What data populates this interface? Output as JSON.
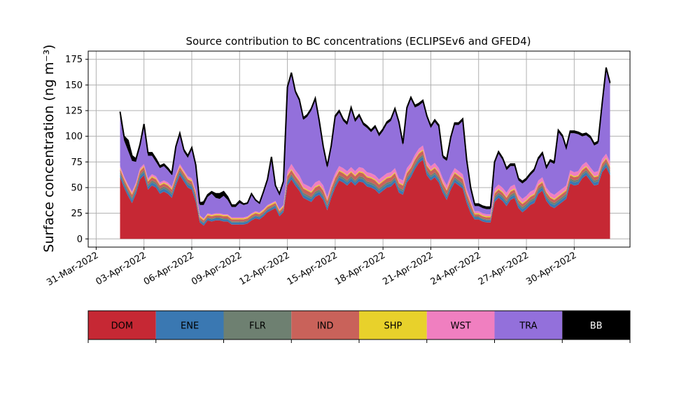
{
  "chart_data": {
    "type": "area",
    "title": "Source contribution to BC concentrations (ECLIPSEv6 and GFED4)",
    "ylabel": "Surface concentration (ng m⁻³)",
    "xlabel": "",
    "ylim": [
      -8,
      183
    ],
    "xlim": [
      "2022-03-30T12:00",
      "2022-05-03T12:00"
    ],
    "grid": true,
    "x_ticks": [
      "31-Mar-2022",
      "03-Apr-2022",
      "06-Apr-2022",
      "09-Apr-2022",
      "12-Apr-2022",
      "15-Apr-2022",
      "18-Apr-2022",
      "21-Apr-2022",
      "24-Apr-2022",
      "27-Apr-2022",
      "30-Apr-2022"
    ],
    "x_tick_dates": [
      "2022-03-31",
      "2022-04-03",
      "2022-04-06",
      "2022-04-09",
      "2022-04-12",
      "2022-04-15",
      "2022-04-18",
      "2022-04-21",
      "2022-04-24",
      "2022-04-27",
      "2022-04-30"
    ],
    "y_ticks": [
      0,
      25,
      50,
      75,
      100,
      125,
      150,
      175
    ],
    "stacked": true,
    "x": [
      "2022-04-01T12:00",
      "2022-04-01T18:00",
      "2022-04-02T00:00",
      "2022-04-02T06:00",
      "2022-04-02T12:00",
      "2022-04-02T18:00",
      "2022-04-03T00:00",
      "2022-04-03T06:00",
      "2022-04-03T12:00",
      "2022-04-03T18:00",
      "2022-04-04T00:00",
      "2022-04-04T06:00",
      "2022-04-04T12:00",
      "2022-04-04T18:00",
      "2022-04-05T00:00",
      "2022-04-05T06:00",
      "2022-04-05T12:00",
      "2022-04-05T18:00",
      "2022-04-06T00:00",
      "2022-04-06T06:00",
      "2022-04-06T12:00",
      "2022-04-06T18:00",
      "2022-04-07T00:00",
      "2022-04-07T06:00",
      "2022-04-07T12:00",
      "2022-04-07T18:00",
      "2022-04-08T00:00",
      "2022-04-08T06:00",
      "2022-04-08T12:00",
      "2022-04-08T18:00",
      "2022-04-09T00:00",
      "2022-04-09T06:00",
      "2022-04-09T12:00",
      "2022-04-09T18:00",
      "2022-04-10T00:00",
      "2022-04-10T06:00",
      "2022-04-10T12:00",
      "2022-04-10T18:00",
      "2022-04-11T00:00",
      "2022-04-11T06:00",
      "2022-04-11T12:00",
      "2022-04-11T18:00",
      "2022-04-12T00:00",
      "2022-04-12T06:00",
      "2022-04-12T12:00",
      "2022-04-12T18:00",
      "2022-04-13T00:00",
      "2022-04-13T06:00",
      "2022-04-13T12:00",
      "2022-04-13T18:00",
      "2022-04-14T00:00",
      "2022-04-14T06:00",
      "2022-04-14T12:00",
      "2022-04-14T18:00",
      "2022-04-15T00:00",
      "2022-04-15T06:00",
      "2022-04-15T12:00",
      "2022-04-15T18:00",
      "2022-04-16T00:00",
      "2022-04-16T06:00",
      "2022-04-16T12:00",
      "2022-04-16T18:00",
      "2022-04-17T00:00",
      "2022-04-17T06:00",
      "2022-04-17T12:00",
      "2022-04-17T18:00",
      "2022-04-18T00:00",
      "2022-04-18T06:00",
      "2022-04-18T12:00",
      "2022-04-18T18:00",
      "2022-04-19T00:00",
      "2022-04-19T06:00",
      "2022-04-19T12:00",
      "2022-04-19T18:00",
      "2022-04-20T00:00",
      "2022-04-20T06:00",
      "2022-04-20T12:00",
      "2022-04-20T18:00",
      "2022-04-21T00:00",
      "2022-04-21T06:00",
      "2022-04-21T12:00",
      "2022-04-21T18:00",
      "2022-04-22T00:00",
      "2022-04-22T06:00",
      "2022-04-22T12:00",
      "2022-04-22T18:00",
      "2022-04-23T00:00",
      "2022-04-23T06:00",
      "2022-04-23T12:00",
      "2022-04-23T18:00",
      "2022-04-24T00:00",
      "2022-04-24T06:00",
      "2022-04-24T12:00",
      "2022-04-24T18:00",
      "2022-04-25T00:00",
      "2022-04-25T06:00",
      "2022-04-25T12:00",
      "2022-04-25T18:00",
      "2022-04-26T00:00",
      "2022-04-26T06:00",
      "2022-04-26T12:00",
      "2022-04-26T18:00",
      "2022-04-27T00:00",
      "2022-04-27T06:00",
      "2022-04-27T12:00",
      "2022-04-27T18:00",
      "2022-04-28T00:00",
      "2022-04-28T06:00",
      "2022-04-28T12:00",
      "2022-04-28T18:00",
      "2022-04-29T00:00",
      "2022-04-29T06:00",
      "2022-04-29T12:00",
      "2022-04-29T18:00",
      "2022-04-30T00:00",
      "2022-04-30T06:00",
      "2022-04-30T12:00",
      "2022-04-30T18:00",
      "2022-05-01T00:00",
      "2022-05-01T06:00",
      "2022-05-01T12:00",
      "2022-05-01T18:00",
      "2022-05-02T00:00",
      "2022-05-02T06:00"
    ],
    "series": [
      {
        "name": "DOM",
        "color": "#c62834",
        "values": [
          60,
          50,
          42,
          35,
          44,
          58,
          62,
          48,
          52,
          50,
          44,
          46,
          44,
          40,
          52,
          62,
          56,
          50,
          48,
          36,
          16,
          13,
          18,
          17,
          18,
          18,
          17,
          17,
          14,
          14,
          14,
          14,
          15,
          18,
          20,
          19,
          22,
          26,
          28,
          30,
          22,
          26,
          52,
          58,
          52,
          47,
          40,
          38,
          36,
          41,
          43,
          38,
          28,
          40,
          50,
          57,
          55,
          52,
          56,
          52,
          56,
          55,
          51,
          50,
          48,
          44,
          47,
          50,
          51,
          55,
          45,
          43,
          55,
          60,
          68,
          74,
          77,
          62,
          57,
          60,
          55,
          45,
          38,
          48,
          55,
          52,
          49,
          35,
          25,
          19,
          19,
          17,
          16,
          16,
          36,
          40,
          37,
          32,
          38,
          40,
          30,
          26,
          29,
          33,
          35,
          44,
          47,
          37,
          32,
          30,
          33,
          36,
          39,
          54,
          52,
          53,
          59,
          62,
          57,
          52,
          53,
          65,
          70,
          62
        ]
      },
      {
        "name": "ENE",
        "color": "#3a78b2",
        "values": [
          3,
          3,
          3,
          3,
          3,
          3,
          3,
          3,
          3,
          3,
          3,
          3,
          3,
          3,
          3,
          3,
          3,
          3,
          3,
          3,
          2,
          2,
          2,
          2,
          2,
          2,
          2,
          2,
          2,
          2,
          2,
          2,
          2,
          2,
          2,
          2,
          2,
          2,
          2,
          2,
          2,
          2,
          3,
          3,
          3,
          3,
          3,
          3,
          3,
          3,
          3,
          3,
          3,
          3,
          3,
          3,
          3,
          3,
          3,
          3,
          3,
          3,
          3,
          3,
          3,
          3,
          3,
          3,
          3,
          3,
          3,
          3,
          3,
          3,
          3,
          3,
          3,
          3,
          3,
          3,
          3,
          3,
          3,
          3,
          3,
          3,
          3,
          3,
          3,
          2,
          2,
          2,
          2,
          2,
          3,
          3,
          3,
          3,
          3,
          3,
          3,
          3,
          3,
          3,
          3,
          3,
          3,
          3,
          3,
          3,
          3,
          3,
          3,
          3,
          3,
          3,
          3,
          3,
          3,
          3,
          3,
          3,
          3,
          3
        ]
      },
      {
        "name": "FLR",
        "color": "#6e8071",
        "values": [
          2,
          2,
          2,
          2,
          2,
          2,
          2,
          2,
          2,
          2,
          2,
          2,
          2,
          2,
          2,
          2,
          2,
          2,
          2,
          2,
          1,
          1,
          1,
          1,
          1,
          1,
          1,
          1,
          1,
          1,
          1,
          1,
          1,
          1,
          1,
          1,
          1,
          1,
          1,
          1,
          1,
          1,
          2,
          2,
          2,
          2,
          2,
          2,
          2,
          2,
          2,
          2,
          2,
          2,
          2,
          2,
          2,
          2,
          2,
          2,
          2,
          2,
          2,
          2,
          2,
          2,
          2,
          2,
          2,
          2,
          2,
          2,
          2,
          2,
          2,
          2,
          2,
          2,
          2,
          2,
          2,
          2,
          2,
          2,
          2,
          2,
          2,
          2,
          2,
          1,
          1,
          1,
          1,
          1,
          2,
          2,
          2,
          2,
          2,
          2,
          2,
          2,
          2,
          2,
          2,
          2,
          2,
          2,
          2,
          2,
          2,
          2,
          2,
          2,
          2,
          2,
          2,
          2,
          2,
          2,
          2,
          2,
          2,
          2
        ]
      },
      {
        "name": "IND",
        "color": "#c9625a",
        "values": [
          3,
          3,
          3,
          3,
          3,
          3,
          3,
          3,
          3,
          3,
          3,
          3,
          3,
          3,
          3,
          3,
          3,
          3,
          3,
          3,
          2,
          2,
          2,
          2,
          2,
          2,
          2,
          2,
          2,
          2,
          2,
          2,
          2,
          2,
          2,
          2,
          2,
          2,
          2,
          2,
          2,
          2,
          4,
          4,
          4,
          4,
          4,
          4,
          4,
          4,
          4,
          4,
          4,
          4,
          4,
          4,
          4,
          4,
          4,
          4,
          4,
          4,
          4,
          4,
          4,
          4,
          4,
          4,
          4,
          4,
          4,
          4,
          4,
          4,
          4,
          4,
          4,
          4,
          4,
          4,
          4,
          4,
          4,
          4,
          4,
          4,
          4,
          4,
          4,
          2,
          2,
          2,
          2,
          2,
          3,
          3,
          3,
          3,
          3,
          3,
          3,
          3,
          3,
          3,
          3,
          3,
          3,
          3,
          3,
          3,
          3,
          3,
          3,
          3,
          3,
          3,
          3,
          3,
          3,
          3,
          3,
          3,
          3,
          3
        ]
      },
      {
        "name": "SHP",
        "color": "#e8d12b",
        "values": [
          1,
          1,
          1,
          1,
          1,
          1,
          1,
          1,
          1,
          1,
          1,
          1,
          1,
          1,
          1,
          1,
          1,
          1,
          1,
          1,
          1,
          1,
          1,
          1,
          1,
          1,
          1,
          1,
          1,
          1,
          1,
          1,
          1,
          1,
          1,
          1,
          1,
          1,
          1,
          1,
          1,
          1,
          1,
          1,
          1,
          1,
          1,
          1,
          1,
          1,
          1,
          1,
          1,
          1,
          1,
          1,
          1,
          1,
          1,
          1,
          1,
          1,
          1,
          1,
          1,
          1,
          1,
          1,
          1,
          1,
          1,
          1,
          1,
          1,
          1,
          1,
          1,
          1,
          1,
          1,
          1,
          1,
          1,
          1,
          1,
          1,
          1,
          1,
          1,
          1,
          1,
          1,
          1,
          1,
          1,
          1,
          1,
          1,
          1,
          1,
          1,
          1,
          1,
          1,
          1,
          1,
          1,
          1,
          1,
          1,
          1,
          1,
          1,
          1,
          1,
          1,
          1,
          1,
          1,
          1,
          1,
          1,
          1,
          1
        ]
      },
      {
        "name": "WST",
        "color": "#f07fc0",
        "values": [
          2,
          2,
          2,
          2,
          2,
          2,
          2,
          2,
          2,
          2,
          2,
          2,
          2,
          2,
          2,
          2,
          2,
          2,
          2,
          2,
          1,
          1,
          1,
          1,
          1,
          1,
          1,
          1,
          1,
          1,
          1,
          1,
          1,
          1,
          1,
          1,
          1,
          1,
          1,
          1,
          1,
          1,
          4,
          5,
          5,
          5,
          4,
          4,
          4,
          4,
          4,
          4,
          3,
          4,
          4,
          4,
          4,
          4,
          4,
          4,
          4,
          4,
          4,
          4,
          4,
          4,
          4,
          4,
          4,
          4,
          4,
          4,
          4,
          4,
          4,
          4,
          4,
          4,
          4,
          4,
          4,
          4,
          4,
          4,
          4,
          4,
          4,
          3,
          3,
          2,
          2,
          2,
          2,
          2,
          4,
          4,
          4,
          4,
          4,
          4,
          4,
          4,
          4,
          4,
          4,
          4,
          4,
          4,
          4,
          4,
          4,
          4,
          4,
          4,
          4,
          4,
          4,
          4,
          4,
          4,
          4,
          4,
          4,
          4
        ]
      },
      {
        "name": "TRA",
        "color": "#9370db",
        "values": [
          48,
          35,
          33,
          30,
          20,
          20,
          36,
          22,
          18,
          14,
          14,
          14,
          12,
          11,
          25,
          28,
          18,
          18,
          28,
          23,
          10,
          13,
          16,
          20,
          15,
          14,
          18,
          14,
          10,
          10,
          14,
          12,
          12,
          18,
          10,
          8,
          16,
          24,
          44,
          14,
          14,
          22,
          80,
          87,
          75,
          72,
          62,
          67,
          75,
          80,
          56,
          36,
          28,
          35,
          54,
          52,
          46,
          45,
          56,
          48,
          49,
          42,
          43,
          40,
          46,
          42,
          44,
          48,
          50,
          56,
          53,
          34,
          57,
          62,
          46,
          42,
          42,
          42,
          37,
          40,
          40,
          20,
          24,
          35,
          42,
          45,
          52,
          27,
          10,
          5,
          5,
          5,
          5,
          5,
          24,
          30,
          27,
          22,
          20,
          18,
          14,
          15,
          15,
          16,
          18,
          20,
          22,
          18,
          30,
          30,
          58,
          50,
          35,
          36,
          38,
          36,
          28,
          26,
          28,
          26,
          27,
          52,
          82,
          75
        ]
      },
      {
        "name": "BB",
        "color": "#000000",
        "values": [
          5,
          4,
          10,
          5,
          3,
          3,
          3,
          3,
          3,
          3,
          2,
          2,
          2,
          2,
          2,
          2,
          2,
          2,
          2,
          2,
          2,
          3,
          2,
          2,
          4,
          5,
          4,
          3,
          2,
          2,
          2,
          1,
          1,
          1,
          1,
          1,
          1,
          1,
          1,
          1,
          1,
          1,
          2,
          2,
          2,
          2,
          2,
          2,
          2,
          2,
          2,
          2,
          2,
          2,
          2,
          2,
          2,
          2,
          2,
          2,
          2,
          2,
          2,
          2,
          2,
          2,
          2,
          2,
          2,
          2,
          2,
          2,
          2,
          2,
          2,
          2,
          2,
          2,
          2,
          2,
          2,
          2,
          2,
          2,
          2,
          2,
          2,
          2,
          2,
          2,
          2,
          2,
          2,
          2,
          2,
          2,
          2,
          2,
          2,
          2,
          2,
          2,
          2,
          2,
          2,
          2,
          2,
          2,
          2,
          2,
          2,
          2,
          2,
          2,
          2,
          2,
          2,
          2,
          2,
          2,
          2,
          2,
          2,
          2
        ]
      }
    ],
    "legend": {
      "placement": "bottom",
      "entries": [
        {
          "label": "DOM",
          "color": "#c62834",
          "text_color": "#000000"
        },
        {
          "label": "ENE",
          "color": "#3a78b2",
          "text_color": "#000000"
        },
        {
          "label": "FLR",
          "color": "#6e8071",
          "text_color": "#000000"
        },
        {
          "label": "IND",
          "color": "#c9625a",
          "text_color": "#000000"
        },
        {
          "label": "SHP",
          "color": "#e8d12b",
          "text_color": "#000000"
        },
        {
          "label": "WST",
          "color": "#f07fc0",
          "text_color": "#000000"
        },
        {
          "label": "TRA",
          "color": "#9370db",
          "text_color": "#000000"
        },
        {
          "label": "BB",
          "color": "#000000",
          "text_color": "#ffffff"
        }
      ]
    }
  }
}
